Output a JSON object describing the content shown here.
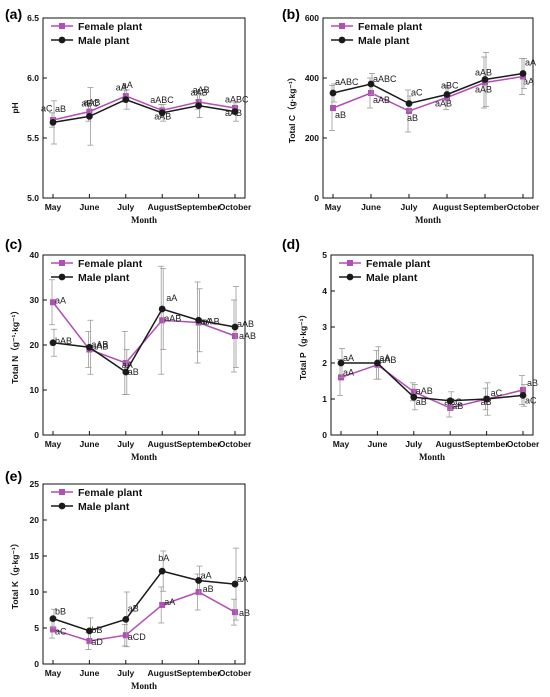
{
  "colors": {
    "female": "#b14fb5",
    "male": "#1a1a1a",
    "error": "#9a9a9a"
  },
  "chart_data": [
    {
      "panel": "(a)",
      "type": "line",
      "categories": [
        "May",
        "June",
        "July",
        "August",
        "September",
        "October"
      ],
      "xlabel": "Month",
      "ylabel": "pH",
      "ylim": [
        5.0,
        6.5
      ],
      "yticks": [
        "5.0",
        "5.5",
        "6.0",
        "6.5"
      ],
      "legend": "top-left",
      "series": [
        {
          "name": "Female plant",
          "values": [
            5.65,
            5.72,
            5.85,
            5.73,
            5.8,
            5.75
          ],
          "errors": [
            0.06,
            0.08,
            0.05,
            0.05,
            0.06,
            0.05
          ],
          "labels": [
            "aB",
            "aAB",
            "aA",
            "aAB",
            "aAB",
            "aAB"
          ]
        },
        {
          "name": "Male plant",
          "values": [
            5.63,
            5.68,
            5.82,
            5.71,
            5.77,
            5.72
          ],
          "errors": [
            0.18,
            0.24,
            0.08,
            0.07,
            0.1,
            0.08
          ],
          "labels": [
            "aC",
            "aBC",
            "aA",
            "aABC",
            "aAB",
            "aABC"
          ]
        }
      ]
    },
    {
      "panel": "(b)",
      "type": "line",
      "categories": [
        "May",
        "June",
        "July",
        "August",
        "September",
        "October"
      ],
      "xlabel": "Month",
      "ylabel": "Total C（g·kg⁻¹）",
      "ylim": [
        0,
        600
      ],
      "yticks": [
        "0",
        "200",
        "400",
        "600"
      ],
      "legend": "top-left",
      "series": [
        {
          "name": "Female plant",
          "values": [
            300,
            350,
            290,
            335,
            385,
            405
          ],
          "errors": [
            75,
            50,
            70,
            40,
            85,
            60
          ],
          "labels": [
            "aB",
            "aAB",
            "aB",
            "aAB",
            "aAB",
            "aA"
          ]
        },
        {
          "name": "Male plant",
          "values": [
            350,
            380,
            315,
            345,
            395,
            415
          ],
          "errors": [
            30,
            35,
            25,
            25,
            90,
            50
          ],
          "labels": [
            "aABC",
            "aABC",
            "aC",
            "aBC",
            "aAB",
            "aA"
          ]
        }
      ]
    },
    {
      "panel": "(c)",
      "type": "line",
      "categories": [
        "May",
        "June",
        "July",
        "August",
        "September",
        "October"
      ],
      "xlabel": "Month",
      "ylabel": "Total N（g⁻¹·kg⁻¹）",
      "ylim": [
        0,
        40
      ],
      "yticks": [
        "0",
        "10",
        "20",
        "30",
        "40"
      ],
      "legend": "top-left",
      "series": [
        {
          "name": "Female plant",
          "values": [
            29.5,
            19.0,
            16.0,
            25.5,
            25.0,
            22.0
          ],
          "errors": [
            5,
            4,
            7,
            12,
            9,
            8
          ],
          "labels": [
            "aA",
            "aAB",
            "aB",
            "aAB",
            "aAB",
            "aAB"
          ]
        },
        {
          "name": "Male plant",
          "values": [
            20.5,
            19.5,
            14.0,
            28.0,
            25.5,
            24.0
          ],
          "errors": [
            3,
            6,
            5,
            9,
            7,
            9
          ],
          "labels": [
            "bAB",
            "aAB",
            "aA",
            "aA",
            "aA",
            "aAB"
          ]
        }
      ]
    },
    {
      "panel": "(d)",
      "type": "line",
      "categories": [
        "May",
        "June",
        "July",
        "August",
        "September",
        "October"
      ],
      "xlabel": "Month",
      "ylabel": "Total P（g·kg⁻¹）",
      "ylim": [
        0,
        5
      ],
      "yticks": [
        "0",
        "1",
        "2",
        "3",
        "4",
        "5"
      ],
      "legend": "top-left",
      "series": [
        {
          "name": "Female plant",
          "values": [
            1.6,
            1.95,
            1.2,
            0.75,
            1.0,
            1.25
          ],
          "errors": [
            0.5,
            0.4,
            0.25,
            0.25,
            0.3,
            0.4
          ],
          "labels": [
            "aA",
            "aAB",
            "aAB",
            "aBC",
            "aC",
            "aB"
          ]
        },
        {
          "name": "Male plant",
          "values": [
            2.0,
            2.0,
            1.05,
            0.95,
            1.0,
            1.1
          ],
          "errors": [
            0.4,
            0.45,
            0.35,
            0.25,
            0.45,
            0.3
          ],
          "labels": [
            "aA",
            "aA",
            "aB",
            "aB",
            "aB",
            "aC"
          ]
        }
      ]
    },
    {
      "panel": "(e)",
      "type": "line",
      "categories": [
        "May",
        "June",
        "July",
        "August",
        "September",
        "October"
      ],
      "xlabel": "Month",
      "ylabel": "Total K（g·kg⁻¹）",
      "ylim": [
        0,
        25
      ],
      "yticks": [
        "0",
        "5",
        "10",
        "15",
        "20",
        "25"
      ],
      "legend": "top-left",
      "series": [
        {
          "name": "Female plant",
          "values": [
            4.8,
            3.2,
            4.0,
            8.2,
            10.0,
            7.2
          ],
          "errors": [
            1.2,
            1.2,
            1.5,
            2.5,
            2.5,
            1.8
          ],
          "labels": [
            "aC",
            "aD",
            "aCD",
            "aA",
            "aB",
            "aB"
          ]
        },
        {
          "name": "Male plant",
          "values": [
            6.3,
            4.6,
            6.2,
            12.9,
            11.6,
            11.1
          ],
          "errors": [
            1.3,
            1.8,
            3.8,
            2.8,
            2.0,
            5.0
          ],
          "labels": [
            "bB",
            "bB",
            "aB",
            "bA",
            "aA",
            "aA"
          ]
        }
      ]
    }
  ]
}
